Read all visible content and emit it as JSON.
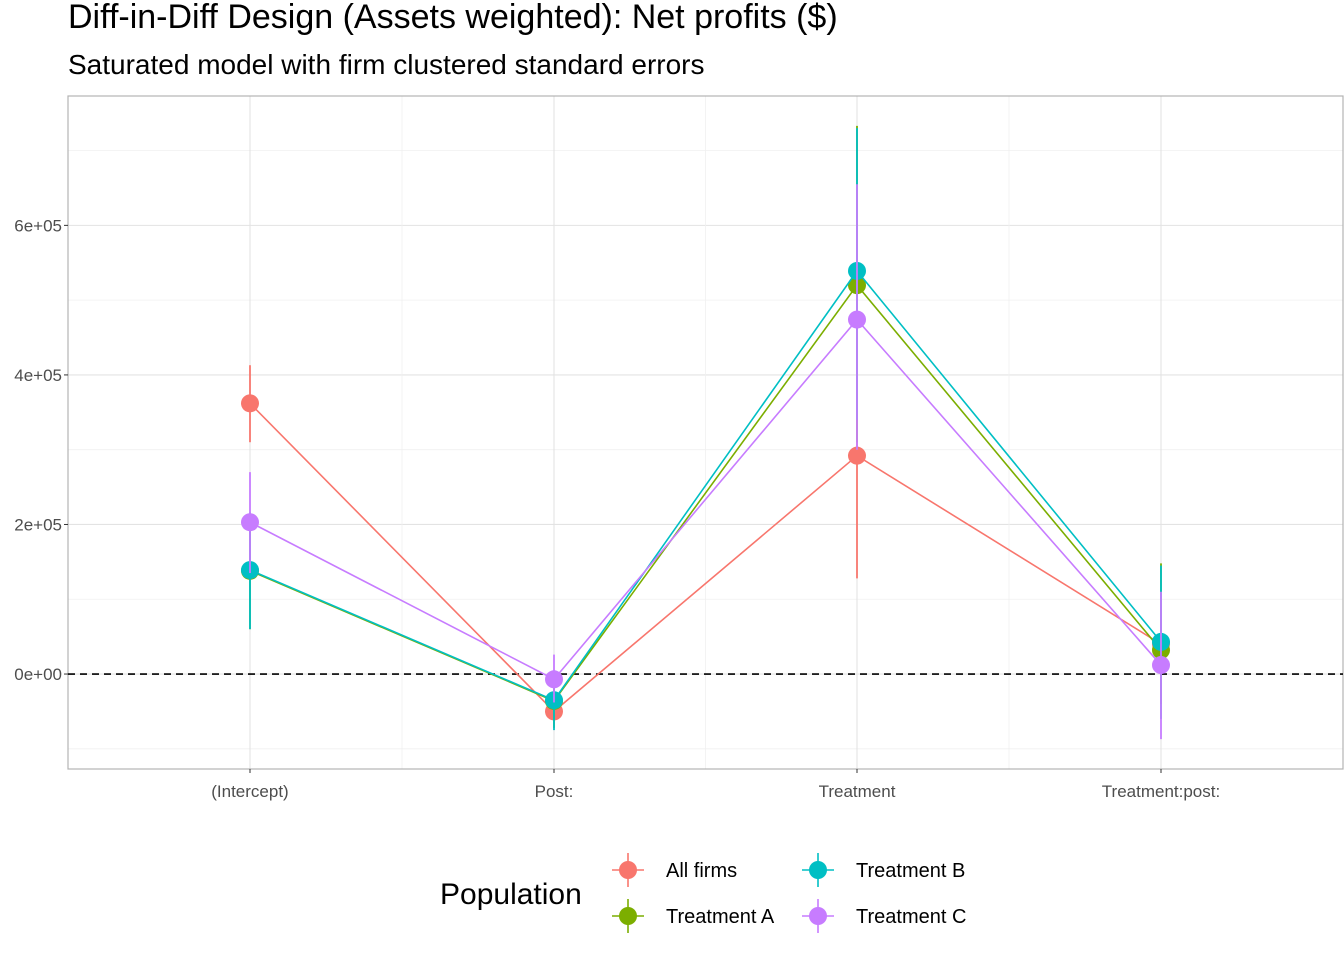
{
  "chart_data": {
    "type": "scatter",
    "title": "Diff-in-Diff Design (Assets weighted): Net profits  ($)",
    "subtitle": "Saturated model with firm clustered standard errors",
    "xlabel": "",
    "ylabel": "",
    "categories": [
      "(Intercept)",
      "Post:",
      "Treatment",
      "Treatment:post:"
    ],
    "ylim": [
      -127000,
      773000
    ],
    "y_ticks": [
      0,
      200000,
      400000,
      600000
    ],
    "y_tick_labels": [
      "0e+00",
      "2e+05",
      "4e+05",
      "6e+05"
    ],
    "grid": true,
    "reference_line": {
      "y": 0,
      "style": "dashed"
    },
    "legend": {
      "title": "Population",
      "position": "bottom"
    },
    "series": [
      {
        "name": "All firms",
        "color": "#F8766D",
        "values": [
          362000,
          -50000,
          292000,
          40000
        ],
        "lower": [
          310000,
          -58000,
          128000,
          10000
        ],
        "upper": [
          413000,
          -42000,
          455000,
          72000
        ]
      },
      {
        "name": "Treatment A",
        "color": "#7CAE00",
        "values": [
          138000,
          -36000,
          520000,
          32000
        ],
        "lower": [
          60000,
          -72000,
          310000,
          -40000
        ],
        "upper": [
          215000,
          -2000,
          733000,
          148000
        ]
      },
      {
        "name": "Treatment B",
        "color": "#00BFC4",
        "values": [
          139000,
          -35000,
          539000,
          43000
        ],
        "lower": [
          60000,
          -75000,
          340000,
          -60000
        ],
        "upper": [
          216000,
          5000,
          730000,
          145000
        ]
      },
      {
        "name": "Treatment C",
        "color": "#C77CFF",
        "values": [
          203000,
          -7000,
          474000,
          12000
        ],
        "lower": [
          135000,
          -38000,
          300000,
          -87000
        ],
        "upper": [
          270000,
          26000,
          655000,
          110000
        ]
      }
    ]
  }
}
